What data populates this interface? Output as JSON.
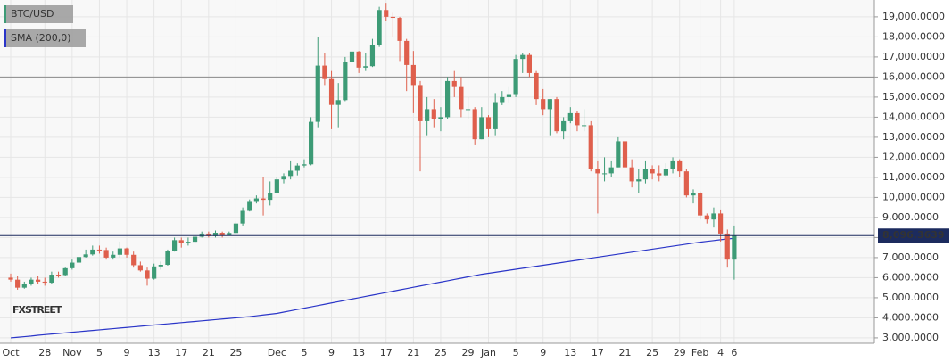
{
  "chart_data": {
    "type": "candlestick",
    "symbol": "BTC/USD",
    "up_color": "#3d9b76",
    "down_color": "#df5f4c",
    "categories": [
      "Oct",
      null,
      null,
      null,
      null,
      "28",
      null,
      null,
      null,
      "Nov",
      null,
      null,
      null,
      "5",
      null,
      null,
      null,
      "9",
      null,
      null,
      null,
      "13",
      null,
      null,
      null,
      "17",
      null,
      null,
      null,
      "21",
      null,
      null,
      null,
      "25",
      null,
      null,
      null,
      null,
      null,
      "Dec",
      null,
      null,
      null,
      "5",
      null,
      null,
      null,
      "9",
      null,
      null,
      null,
      "13",
      null,
      null,
      null,
      "17",
      null,
      null,
      null,
      "21",
      null,
      null,
      null,
      "25",
      null,
      null,
      null,
      "29",
      null,
      null,
      "Jan",
      null,
      null,
      null,
      "5",
      null,
      null,
      null,
      "9",
      null,
      null,
      null,
      "13",
      null,
      null,
      null,
      "17",
      null,
      null,
      null,
      "21",
      null,
      null,
      null,
      "25",
      null,
      null,
      null,
      "29",
      null,
      null,
      "Feb",
      null,
      null,
      "4",
      null,
      "6"
    ],
    "open": [
      6000,
      5900,
      5500,
      5700,
      5900,
      5800,
      5750,
      6150,
      6130,
      6470,
      6750,
      7030,
      7160,
      7400,
      7380,
      7000,
      7140,
      7460,
      7140,
      6620,
      6360,
      5950,
      6560,
      6640,
      7320,
      7870,
      7710,
      7790,
      8040,
      8200,
      8070,
      8240,
      8100,
      8230,
      8700,
      9330,
      9820,
      9950,
      9880,
      10230,
      10900,
      11070,
      11330,
      11590,
      11650,
      13770,
      16570,
      15900,
      14610,
      14850,
      16760,
      17270,
      16470,
      16540,
      17600,
      19340,
      19000,
      18950,
      17800,
      16600,
      15600,
      13800,
      14400,
      13900,
      14000,
      15800,
      15500,
      14400,
      14400,
      12900,
      14000,
      13400,
      14750,
      15000,
      15150,
      16900,
      17100,
      16200,
      14900,
      14400,
      14900,
      13300,
      13800,
      14200,
      13600,
      13600,
      11400,
      11200,
      11200,
      11500,
      12800,
      11500,
      10800,
      10900,
      11400,
      11200,
      11100,
      11400,
      11800,
      11300,
      10100,
      10200,
      9100,
      8900,
      9200,
      8200,
      6900
    ],
    "high": [
      6200,
      6100,
      5800,
      6000,
      6100,
      6000,
      6300,
      6300,
      6500,
      6900,
      7300,
      7400,
      7600,
      7600,
      7500,
      7300,
      7800,
      7500,
      7300,
      6800,
      6500,
      6700,
      6800,
      7400,
      8000,
      8000,
      8000,
      8100,
      8300,
      8300,
      8350,
      8300,
      8300,
      8800,
      9500,
      9900,
      10100,
      11000,
      10800,
      11000,
      11200,
      11800,
      11700,
      11900,
      14000,
      18000,
      17200,
      16300,
      15700,
      17000,
      17500,
      17300,
      17200,
      17900,
      19500,
      19700,
      19200,
      19000,
      17900,
      17300,
      15800,
      15000,
      14900,
      14500,
      16000,
      16300,
      16000,
      15000,
      14500,
      14500,
      14100,
      15200,
      15300,
      15500,
      17100,
      17200,
      17200,
      16300,
      15400,
      14900,
      15000,
      14000,
      14500,
      14300,
      14400,
      13800,
      11800,
      12000,
      11800,
      13000,
      12900,
      11900,
      11400,
      11800,
      11600,
      11600,
      11700,
      12000,
      11900,
      11400,
      10400,
      10300,
      9200,
      9500,
      9400,
      8400,
      8600
    ],
    "low": [
      5800,
      5400,
      5450,
      5600,
      5700,
      5600,
      5700,
      6000,
      6100,
      6400,
      6700,
      7000,
      7100,
      7200,
      6900,
      6900,
      7000,
      7000,
      6500,
      6300,
      5600,
      5900,
      6400,
      6600,
      7300,
      7500,
      7600,
      7700,
      8000,
      8000,
      8000,
      8000,
      8100,
      8200,
      8600,
      9300,
      9700,
      9100,
      9600,
      10200,
      10700,
      10900,
      11100,
      11500,
      11600,
      13500,
      15600,
      13400,
      13500,
      14800,
      16600,
      16200,
      16300,
      16500,
      17500,
      18800,
      18000,
      16800,
      15300,
      14200,
      11300,
      13100,
      13500,
      13300,
      13900,
      15000,
      14000,
      13900,
      12600,
      12900,
      13000,
      13100,
      14600,
      14700,
      15000,
      16200,
      16000,
      14600,
      14100,
      13100,
      13200,
      12900,
      13700,
      13300,
      13300,
      11300,
      9200,
      10800,
      11000,
      11500,
      11100,
      10500,
      10200,
      10700,
      10900,
      10800,
      11000,
      11200,
      11000,
      10000,
      9700,
      8900,
      8700,
      8500,
      7800,
      6500,
      5900
    ],
    "close": [
      5900,
      5500,
      5700,
      5900,
      5800,
      5750,
      6150,
      6130,
      6470,
      6750,
      7030,
      7160,
      7400,
      7380,
      7000,
      7140,
      7460,
      7140,
      6620,
      6360,
      5950,
      6560,
      6640,
      7320,
      7870,
      7710,
      7790,
      8040,
      8200,
      8070,
      8240,
      8100,
      8230,
      8700,
      9330,
      9820,
      9950,
      9880,
      10230,
      10900,
      11070,
      11330,
      11590,
      11650,
      13770,
      16570,
      15900,
      14610,
      14850,
      16760,
      17270,
      16470,
      16540,
      17600,
      19340,
      19000,
      18950,
      17800,
      16600,
      15600,
      13800,
      14400,
      13900,
      14000,
      15800,
      15500,
      14400,
      14400,
      12900,
      14000,
      13400,
      14750,
      15000,
      15150,
      16900,
      17100,
      16200,
      14900,
      14400,
      14900,
      13300,
      13800,
      14200,
      13600,
      13600,
      11400,
      11200,
      11200,
      11500,
      12800,
      11500,
      10800,
      10900,
      11400,
      11200,
      11100,
      11400,
      11800,
      11300,
      10100,
      10200,
      9100,
      8900,
      9200,
      8200,
      6900,
      8096
    ],
    "sma": {
      "name": "SMA (200,0)",
      "color": "#2a35c8",
      "values": [
        3000,
        3030,
        3060,
        3090,
        3130,
        3160,
        3190,
        3220,
        3250,
        3280,
        3310,
        3340,
        3370,
        3400,
        3430,
        3460,
        3490,
        3520,
        3550,
        3580,
        3610,
        3640,
        3670,
        3700,
        3730,
        3760,
        3790,
        3820,
        3850,
        3880,
        3910,
        3940,
        3970,
        4000,
        4030,
        4060,
        4100,
        4140,
        4180,
        4220,
        4285,
        4350,
        4415,
        4480,
        4545,
        4610,
        4675,
        4740,
        4805,
        4870,
        4935,
        5000,
        5065,
        5130,
        5195,
        5260,
        5325,
        5390,
        5455,
        5520,
        5585,
        5650,
        5715,
        5780,
        5845,
        5910,
        5975,
        6040,
        6105,
        6170,
        6220,
        6270,
        6320,
        6370,
        6420,
        6470,
        6520,
        6570,
        6620,
        6670,
        6720,
        6770,
        6820,
        6870,
        6920,
        6970,
        7020,
        7070,
        7120,
        7170,
        7220,
        7270,
        7320,
        7370,
        7420,
        7470,
        7520,
        7570,
        7620,
        7670,
        7720,
        7770,
        7810,
        7850,
        7890,
        7930,
        7960
      ]
    },
    "hline": {
      "value": 16000,
      "color": "#8a8a8a"
    },
    "last_price": {
      "value": 8096.3639,
      "label": "8,096.3639",
      "color": "#1c2b5e"
    },
    "watermark": "FXSTREET",
    "ylim": [
      2730,
      19840
    ],
    "yticks": [
      {
        "value": 3000,
        "label": "3,000.0000"
      },
      {
        "value": 4000,
        "label": "4,000.0000"
      },
      {
        "value": 5000,
        "label": "5,000.0000"
      },
      {
        "value": 6000,
        "label": "6,000.0000"
      },
      {
        "value": 7000,
        "label": "7,000.0000"
      },
      {
        "value": 8000,
        "label": "8,000.0000"
      },
      {
        "value": 9000,
        "label": "9,000.0000"
      },
      {
        "value": 10000,
        "label": "10,000.0000"
      },
      {
        "value": 11000,
        "label": "11,000.0000"
      },
      {
        "value": 12000,
        "label": "12,000.0000"
      },
      {
        "value": 13000,
        "label": "13,000.0000"
      },
      {
        "value": 14000,
        "label": "14,000.0000"
      },
      {
        "value": 15000,
        "label": "15,000.0000"
      },
      {
        "value": 16000,
        "label": "16,000.0000"
      },
      {
        "value": 17000,
        "label": "17,000.0000"
      },
      {
        "value": 18000,
        "label": "18,000.0000"
      },
      {
        "value": 19000,
        "label": "19,000.0000"
      }
    ],
    "grid": true
  }
}
